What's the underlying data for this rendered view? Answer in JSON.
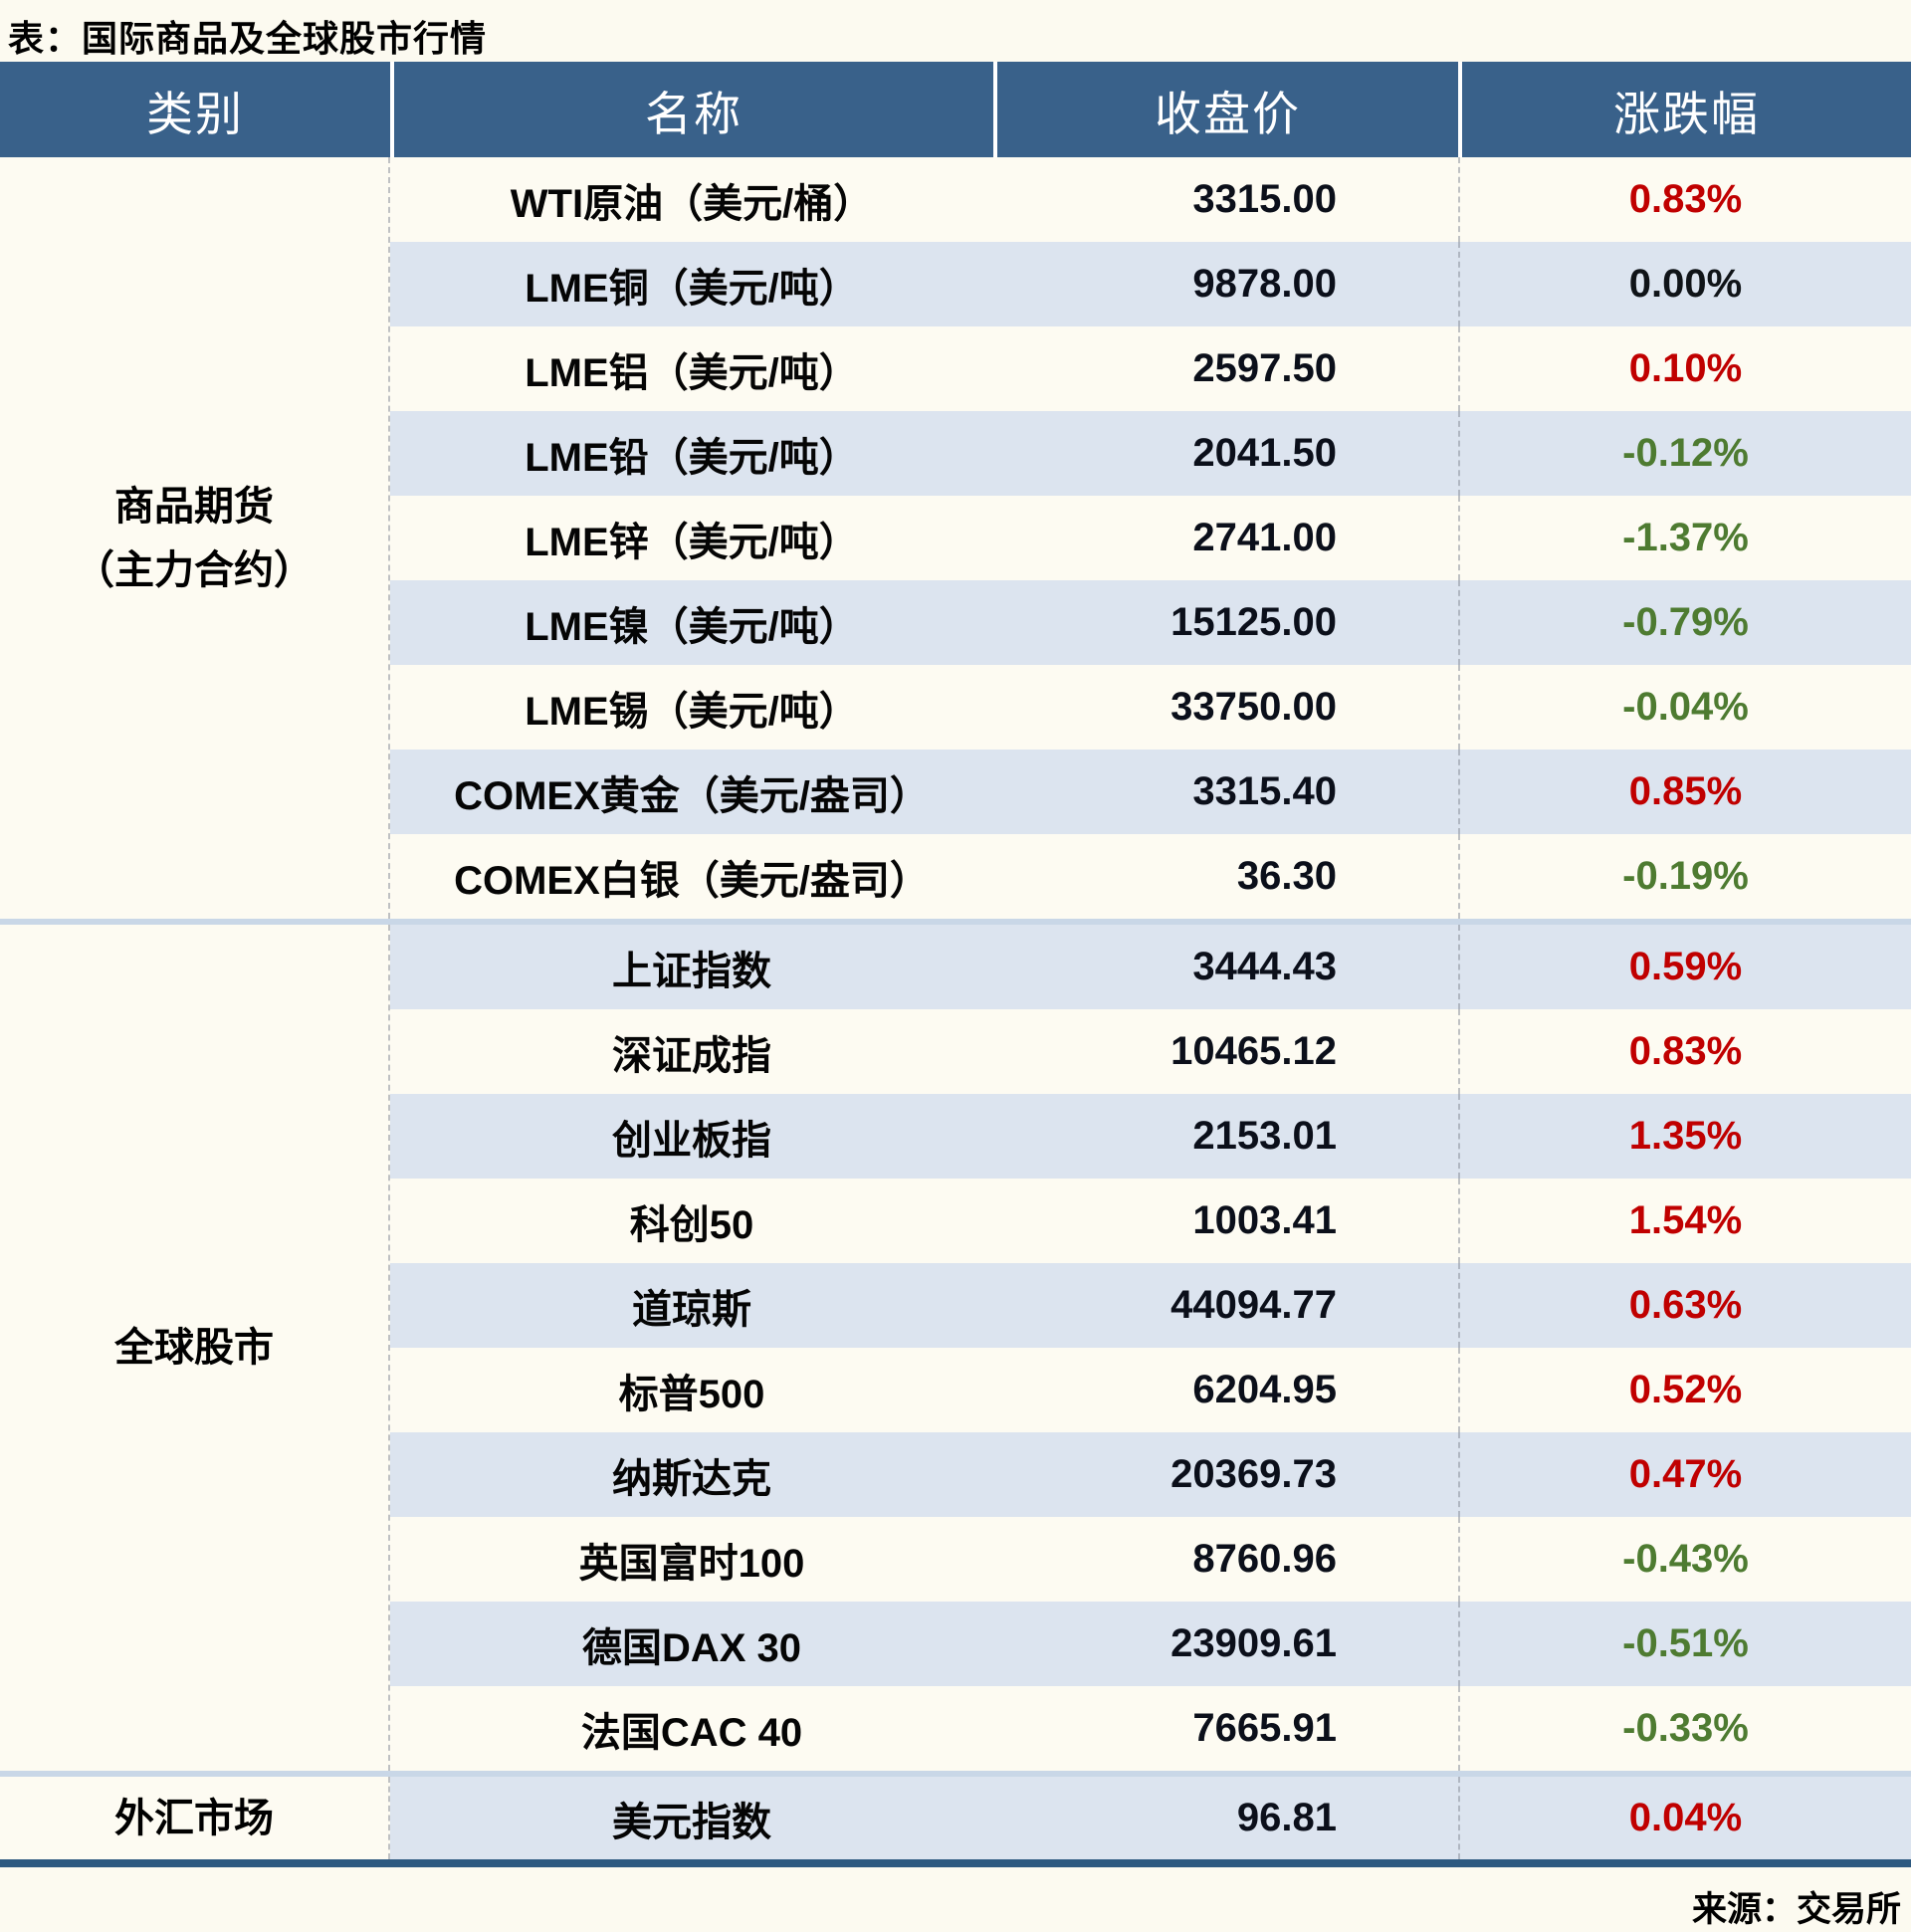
{
  "title": "表：国际商品及全球股市行情",
  "source": "来源：交易所",
  "colors": {
    "up": "#C00000",
    "down": "#4E7B31",
    "flat": "#101418",
    "header_bg": "#39618A",
    "row_alt_bg": "#DCE4EF",
    "row_plain_bg": "#FDFBF2",
    "section_divider": "#C9D7E7",
    "bottom_bar": "#2D5980"
  },
  "table": {
    "headers": [
      "类别",
      "名称",
      "收盘价",
      "涨跌幅"
    ],
    "sections": [
      {
        "category_lines": [
          "商品期货",
          "（主力合约）"
        ],
        "rows": [
          {
            "name": "WTI原油（美元/桶）",
            "close": "3315.00",
            "change": "0.83%",
            "trend": "up"
          },
          {
            "name": "LME铜（美元/吨）",
            "close": "9878.00",
            "change": "0.00%",
            "trend": "flat"
          },
          {
            "name": "LME铝（美元/吨）",
            "close": "2597.50",
            "change": "0.10%",
            "trend": "up"
          },
          {
            "name": "LME铅（美元/吨）",
            "close": "2041.50",
            "change": "-0.12%",
            "trend": "down"
          },
          {
            "name": "LME锌（美元/吨）",
            "close": "2741.00",
            "change": "-1.37%",
            "trend": "down"
          },
          {
            "name": "LME镍（美元/吨）",
            "close": "15125.00",
            "change": "-0.79%",
            "trend": "down"
          },
          {
            "name": "LME锡（美元/吨）",
            "close": "33750.00",
            "change": "-0.04%",
            "trend": "down"
          },
          {
            "name": "COMEX黄金（美元/盎司）",
            "close": "3315.40",
            "change": "0.85%",
            "trend": "up"
          },
          {
            "name": "COMEX白银（美元/盎司）",
            "close": "36.30",
            "change": "-0.19%",
            "trend": "down"
          }
        ]
      },
      {
        "category_lines": [
          "全球股市"
        ],
        "rows": [
          {
            "name": "上证指数",
            "close": "3444.43",
            "change": "0.59%",
            "trend": "up"
          },
          {
            "name": "深证成指",
            "close": "10465.12",
            "change": "0.83%",
            "trend": "up"
          },
          {
            "name": "创业板指",
            "close": "2153.01",
            "change": "1.35%",
            "trend": "up"
          },
          {
            "name": "科创50",
            "close": "1003.41",
            "change": "1.54%",
            "trend": "up"
          },
          {
            "name": "道琼斯",
            "close": "44094.77",
            "change": "0.63%",
            "trend": "up"
          },
          {
            "name": "标普500",
            "close": "6204.95",
            "change": "0.52%",
            "trend": "up"
          },
          {
            "name": "纳斯达克",
            "close": "20369.73",
            "change": "0.47%",
            "trend": "up"
          },
          {
            "name": "英国富时100",
            "close": "8760.96",
            "change": "-0.43%",
            "trend": "down"
          },
          {
            "name": "德国DAX 30",
            "close": "23909.61",
            "change": "-0.51%",
            "trend": "down"
          },
          {
            "name": "法国CAC 40",
            "close": "7665.91",
            "change": "-0.33%",
            "trend": "down"
          }
        ]
      },
      {
        "category_lines": [
          "外汇市场"
        ],
        "rows": [
          {
            "name": "美元指数",
            "close": "96.81",
            "change": "0.04%",
            "trend": "up"
          }
        ]
      }
    ]
  }
}
